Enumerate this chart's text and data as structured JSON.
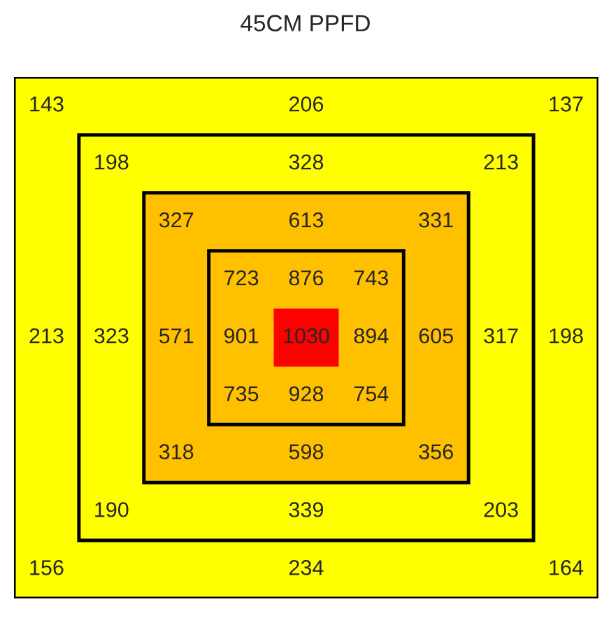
{
  "chart_data": {
    "type": "other",
    "title": "45CM PPFD",
    "values": [
      143,
      206,
      137,
      198,
      328,
      213,
      327,
      613,
      331,
      723,
      876,
      743,
      213,
      323,
      571,
      901,
      1030,
      894,
      605,
      317,
      198,
      735,
      928,
      754,
      318,
      598,
      356,
      190,
      339,
      203,
      156,
      234,
      164
    ],
    "colors": [
      "#ffff00",
      "#ffff00",
      "#ffff00",
      "#ffff00",
      "#ffff00",
      "#ffff00",
      "#ffc000",
      "#ffc000",
      "#ffc000",
      "#ffc000",
      "#ffc000",
      "#ffc000",
      "#ffff00",
      "#ffff00",
      "#ffc000",
      "#ffc000",
      "#ff0000",
      "#ffc000",
      "#ffc000",
      "#ffff00",
      "#ffff00",
      "#ffc000",
      "#ffc000",
      "#ffc000",
      "#ffc000",
      "#ffc000",
      "#ffc000",
      "#ffff00",
      "#ffff00",
      "#ffff00",
      "#ffff00",
      "#ffff00",
      "#ffff00"
    ],
    "data_labels": true
  }
}
